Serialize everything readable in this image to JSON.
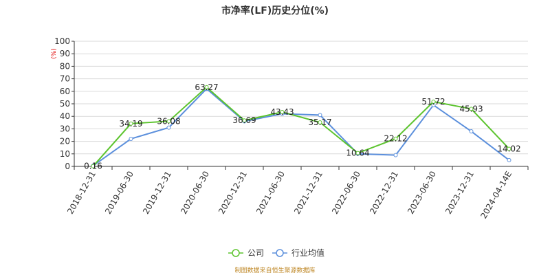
{
  "chart_data": {
    "type": "line",
    "title": "市净率(LF)历史分位(%)",
    "ylabel": "(%)",
    "xlabel": "",
    "ylim": [
      0,
      100
    ],
    "yticks": [
      0,
      10,
      20,
      30,
      40,
      50,
      60,
      70,
      80,
      90,
      100
    ],
    "categories": [
      "2018-12-31",
      "2019-06-30",
      "2019-12-31",
      "2020-06-30",
      "2020-12-31",
      "2021-06-30",
      "2021-12-31",
      "2022-06-30",
      "2022-12-31",
      "2023-06-30",
      "2023-12-31",
      "2024-04-14E"
    ],
    "series": [
      {
        "name": "公司",
        "color": "#5cc42e",
        "values": [
          0.16,
          34.19,
          36.08,
          63.27,
          36.69,
          43.43,
          35.17,
          10.64,
          22.12,
          51.72,
          45.93,
          14.02
        ],
        "labels": [
          "0.16",
          "34.19",
          "36.08",
          "63.27",
          "36.69",
          "43.43",
          "35.17",
          "10.64",
          "22.12",
          "51.72",
          "45.93",
          "14.02"
        ]
      },
      {
        "name": "行业均值",
        "color": "#5b8fdc",
        "values": [
          0.5,
          22,
          31,
          62,
          36,
          42,
          41,
          10,
          9,
          49,
          28,
          5
        ]
      }
    ],
    "grid": true,
    "legend": "bottom-center"
  },
  "source_text": "制图数据来自恒生聚源数据库"
}
